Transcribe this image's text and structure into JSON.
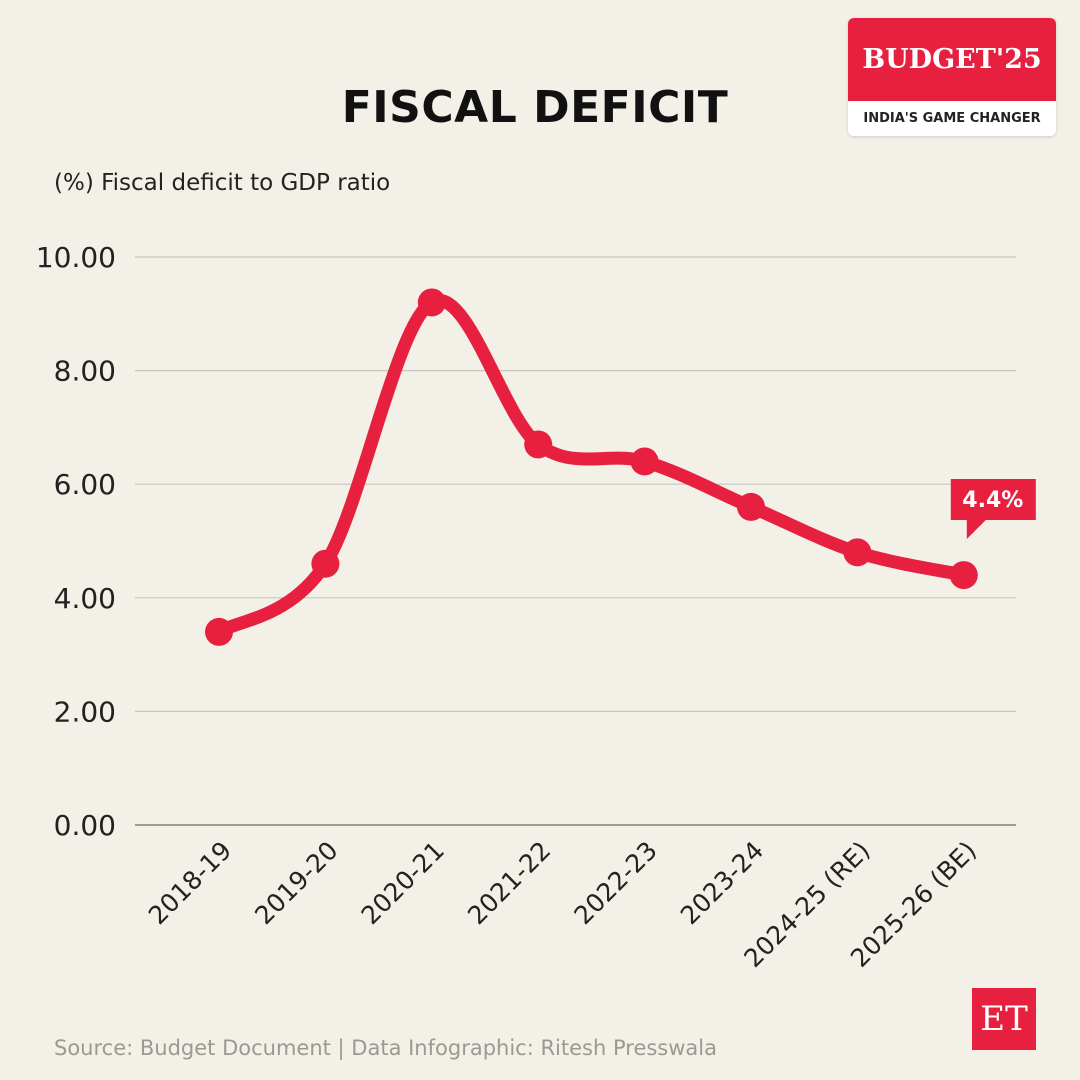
{
  "header": {
    "title": "FISCAL DEFICIT",
    "subtitle": "(%) Fiscal deficit to GDP ratio"
  },
  "logo": {
    "main": "BUDGET'25",
    "tagline": "INDIA'S GAME CHANGER"
  },
  "footer": {
    "source": "Source: Budget Document | Data Infographic: Ritesh Presswala",
    "brand": "ET"
  },
  "colors": {
    "line": "#e8203f",
    "background": "#f2f0e7",
    "grid": "#c8c6bd"
  },
  "chart_data": {
    "type": "line",
    "title": "FISCAL DEFICIT",
    "ylabel": "(%) Fiscal deficit to GDP ratio",
    "categories": [
      "2018-19",
      "2019-20",
      "2020-21",
      "2021-22",
      "2022-23",
      "2023-24",
      "2024-25 (RE)",
      "2025-26 (BE)"
    ],
    "values": [
      3.4,
      4.6,
      9.2,
      6.7,
      6.4,
      5.6,
      4.8,
      4.4
    ],
    "ylim": [
      0,
      10
    ],
    "yticks": [
      "0.00",
      "2.00",
      "4.00",
      "6.00",
      "8.00",
      "10.00"
    ],
    "grid": true,
    "smooth": true,
    "annotation": {
      "category": "2025-26 (BE)",
      "text": "4.4%"
    }
  }
}
